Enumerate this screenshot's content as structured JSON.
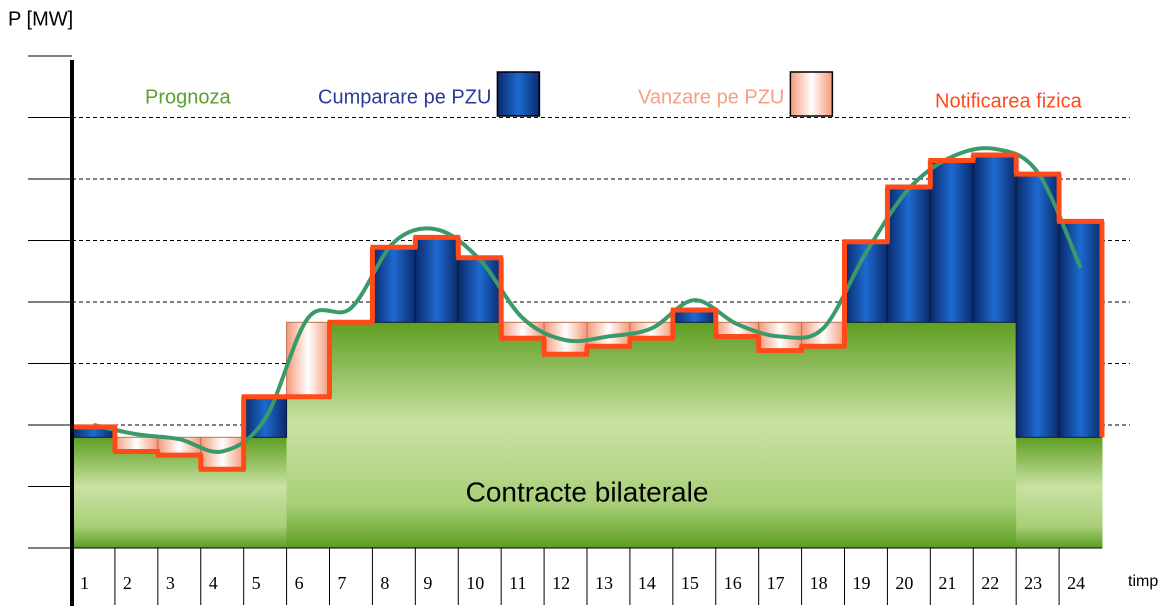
{
  "chart_data": {
    "type": "step-composite",
    "y_label": "P [MW]",
    "x_label": "timp",
    "area_label": "Contracte bilaterale",
    "categories": [
      "1",
      "2",
      "3",
      "4",
      "5",
      "6",
      "7",
      "8",
      "9",
      "10",
      "11",
      "12",
      "13",
      "14",
      "15",
      "16",
      "17",
      "18",
      "19",
      "20",
      "21",
      "22",
      "23",
      "24"
    ],
    "ylim": [
      0,
      8
    ],
    "yticks": [
      0,
      1,
      2,
      3,
      4,
      5,
      6,
      7,
      8
    ],
    "grid": true,
    "series": [
      {
        "name": "Contracte bilaterale",
        "color": "#5c9e20",
        "values": [
          1.8,
          1.8,
          1.8,
          1.8,
          1.8,
          3.67,
          3.67,
          3.67,
          3.67,
          3.67,
          3.67,
          3.67,
          3.67,
          3.67,
          3.67,
          3.67,
          3.67,
          3.67,
          3.67,
          3.67,
          3.67,
          3.67,
          1.8,
          1.8
        ]
      },
      {
        "name": "Notificarea fizica",
        "color": "#ff4a1a",
        "values": [
          1.97,
          1.57,
          1.51,
          1.28,
          2.46,
          2.46,
          3.67,
          4.89,
          5.05,
          4.72,
          3.41,
          3.15,
          3.28,
          3.41,
          3.87,
          3.44,
          3.21,
          3.28,
          4.98,
          5.87,
          6.3,
          6.39,
          6.08,
          5.31
        ]
      },
      {
        "name": "Prognoza",
        "color": "#3a9a6a",
        "values": [
          2.0,
          1.85,
          1.77,
          1.57,
          2.1,
          3.74,
          3.9,
          4.97,
          5.18,
          4.69,
          3.74,
          3.38,
          3.44,
          3.57,
          4.03,
          3.64,
          3.44,
          3.57,
          4.8,
          5.84,
          6.36,
          6.49,
          6.11,
          4.56
        ]
      }
    ],
    "legend": [
      {
        "label": "Prognoza",
        "color": "#5aa02c"
      },
      {
        "label": "Cumparare pe PZU",
        "color": "#2a3a9a"
      },
      {
        "label": "Vanzare pe PZU",
        "color": "#f5a080"
      },
      {
        "label": "Notificarea fizica",
        "color": "#ff4a1a"
      }
    ]
  }
}
